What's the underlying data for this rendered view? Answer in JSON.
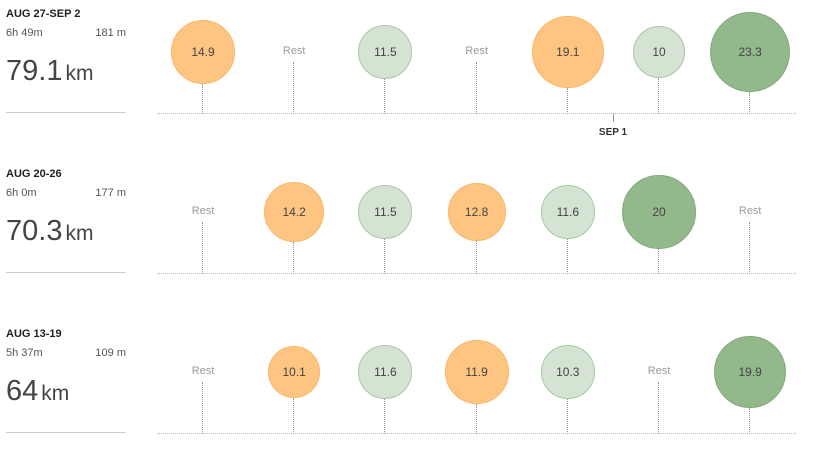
{
  "weeks": [
    {
      "range": "AUG 27-SEP 2",
      "time": "6h 49m",
      "elevation": "181 m",
      "distance": "79.1",
      "unit": "km",
      "marker": "SEP 1",
      "days": [
        {
          "label": "14.9",
          "rest": false,
          "color": "orange"
        },
        {
          "label": "Rest",
          "rest": true
        },
        {
          "label": "11.5",
          "rest": false,
          "color": "lightgreen"
        },
        {
          "label": "Rest",
          "rest": true
        },
        {
          "label": "19.1",
          "rest": false,
          "color": "orange"
        },
        {
          "label": "10",
          "rest": false,
          "color": "lightgreen"
        },
        {
          "label": "23.3",
          "rest": false,
          "color": "darkgreen"
        }
      ]
    },
    {
      "range": "AUG 20-26",
      "time": "6h 0m",
      "elevation": "177 m",
      "distance": "70.3",
      "unit": "km",
      "days": [
        {
          "label": "Rest",
          "rest": true
        },
        {
          "label": "14.2",
          "rest": false,
          "color": "orange"
        },
        {
          "label": "11.5",
          "rest": false,
          "color": "lightgreen"
        },
        {
          "label": "12.8",
          "rest": false,
          "color": "orange"
        },
        {
          "label": "11.6",
          "rest": false,
          "color": "lightgreen"
        },
        {
          "label": "20",
          "rest": false,
          "color": "darkgreen"
        },
        {
          "label": "Rest",
          "rest": true
        }
      ]
    },
    {
      "range": "AUG 13-19",
      "time": "5h 37m",
      "elevation": "109 m",
      "distance": "64",
      "unit": "km",
      "days": [
        {
          "label": "Rest",
          "rest": true
        },
        {
          "label": "10.1",
          "rest": false,
          "color": "orange"
        },
        {
          "label": "11.6",
          "rest": false,
          "color": "lightgreen"
        },
        {
          "label": "11.9",
          "rest": false,
          "color": "orange"
        },
        {
          "label": "10.3",
          "rest": false,
          "color": "lightgreen"
        },
        {
          "label": "Rest",
          "rest": true
        },
        {
          "label": "19.9",
          "rest": false,
          "color": "darkgreen"
        }
      ]
    }
  ]
}
